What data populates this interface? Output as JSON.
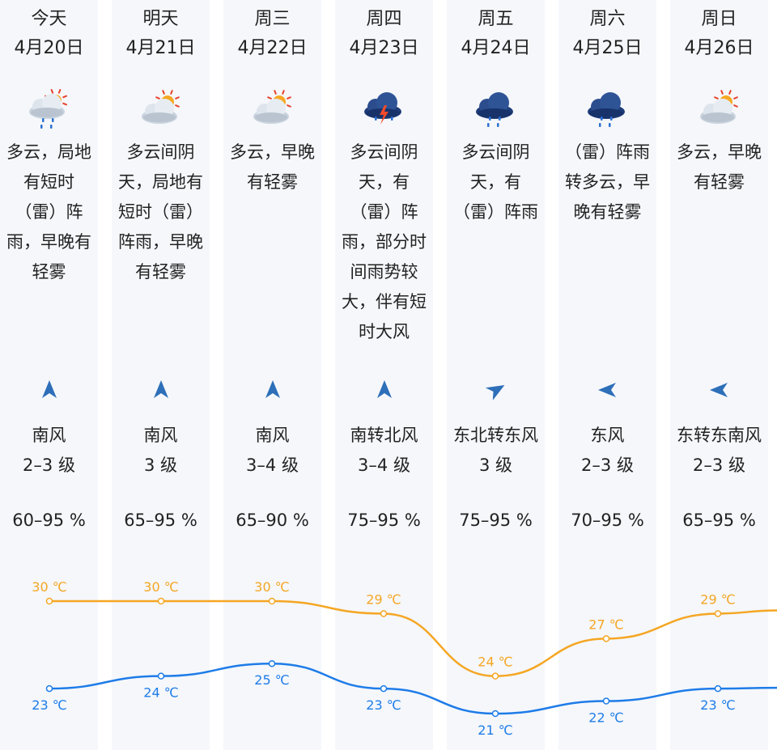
{
  "days": [
    {
      "day": "今天",
      "date": "4月20日",
      "icon": "partly-cloudy-rain-icon",
      "desc": [
        "多云，局地",
        "有短时",
        "（雷）阵",
        "雨，早晚有",
        "轻雾"
      ],
      "wind_dir": "南风",
      "wind_level": "2–3 级",
      "wind_angle": 0,
      "humidity": "60–95 %",
      "high": "30 ℃",
      "low": "23 ℃"
    },
    {
      "day": "明天",
      "date": "4月21日",
      "icon": "partly-cloudy-icon",
      "desc": [
        "多云间阴",
        "天，局地有",
        "短时（雷）",
        "阵雨，早晚",
        "有轻雾"
      ],
      "wind_dir": "南风",
      "wind_level": "3 级",
      "wind_angle": 0,
      "humidity": "65–95 %",
      "high": "30 ℃",
      "low": "24 ℃"
    },
    {
      "day": "周三",
      "date": "4月22日",
      "icon": "partly-cloudy-icon",
      "desc": [
        "多云，早晚",
        "有轻雾"
      ],
      "wind_dir": "南风",
      "wind_level": "3–4 级",
      "wind_angle": 0,
      "humidity": "65–90 %",
      "high": "30 ℃",
      "low": "25 ℃"
    },
    {
      "day": "周四",
      "date": "4月23日",
      "icon": "thunderstorm-icon",
      "desc": [
        "多云间阴",
        "天，有",
        "（雷）阵",
        "雨，部分时",
        "间雨势较",
        "大，伴有短",
        "时大风"
      ],
      "wind_dir": "南转北风",
      "wind_level": "3–4 级",
      "wind_angle": 0,
      "humidity": "75–95 %",
      "high": "29 ℃",
      "low": "23 ℃"
    },
    {
      "day": "周五",
      "date": "4月24日",
      "icon": "rain-cloud-icon",
      "desc": [
        "多云间阴",
        "天，有",
        "（雷）阵雨"
      ],
      "wind_dir": "东北转东风",
      "wind_level": "3 级",
      "wind_angle": 60,
      "humidity": "75–95 %",
      "high": "24 ℃",
      "low": "21 ℃"
    },
    {
      "day": "周六",
      "date": "4月25日",
      "icon": "rain-cloud-icon",
      "desc": [
        "（雷）阵雨",
        "转多云，早",
        "晚有轻雾"
      ],
      "wind_dir": "东风",
      "wind_level": "2–3 级",
      "wind_angle": -90,
      "humidity": "70–95 %",
      "high": "27 ℃",
      "low": "22 ℃"
    },
    {
      "day": "周日",
      "date": "4月26日",
      "icon": "partly-cloudy-icon",
      "desc": [
        "多云，早晚",
        "有轻雾"
      ],
      "wind_dir": "东转东南风",
      "wind_level": "2–3 级",
      "wind_angle": -90,
      "humidity": "65–95 %",
      "high": "29 ℃",
      "low": "23 ℃"
    }
  ],
  "chart_data": {
    "type": "line",
    "categories": [
      "4月20日",
      "4月21日",
      "4月22日",
      "4月23日",
      "4月24日",
      "4月25日",
      "4月26日"
    ],
    "series": [
      {
        "values": [
          30,
          30,
          30,
          29,
          24,
          27,
          29
        ],
        "color": "#f5a623"
      },
      {
        "values": [
          23,
          24,
          25,
          23,
          21,
          22,
          23
        ],
        "color": "#1e7ce8"
      }
    ],
    "unit": "℃"
  },
  "colors": {
    "high": "#f5a623",
    "low": "#1e7ce8",
    "column_bg": "#f5f7fb",
    "icon_blue": "#2d6fb8"
  }
}
